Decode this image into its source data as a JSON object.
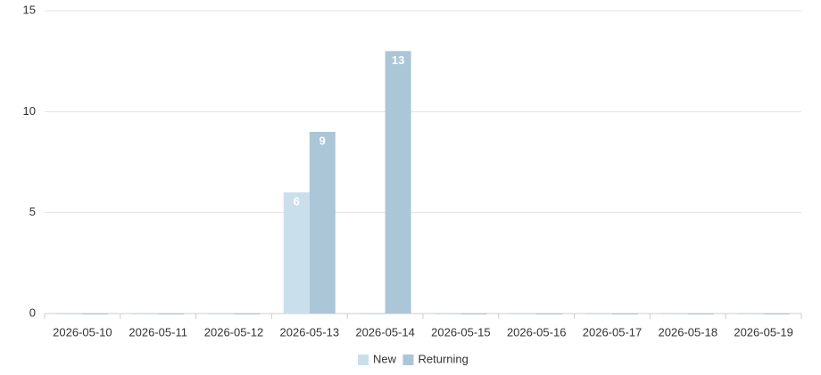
{
  "chart_data": {
    "type": "bar",
    "categories": [
      "2026-05-10",
      "2026-05-11",
      "2026-05-12",
      "2026-05-13",
      "2026-05-14",
      "2026-05-15",
      "2026-05-16",
      "2026-05-17",
      "2026-05-18",
      "2026-05-19"
    ],
    "series": [
      {
        "name": "New",
        "color": "#c9dfec",
        "values": [
          0,
          0,
          0,
          6,
          0,
          0,
          0,
          0,
          0,
          0
        ]
      },
      {
        "name": "Returning",
        "color": "#abc6d6",
        "values": [
          0,
          0,
          0,
          9,
          13,
          0,
          0,
          0,
          0,
          0
        ]
      }
    ],
    "ylim": [
      0,
      15
    ],
    "yticks": [
      0,
      5,
      10,
      15
    ],
    "grid": true,
    "legend": "bottom"
  }
}
